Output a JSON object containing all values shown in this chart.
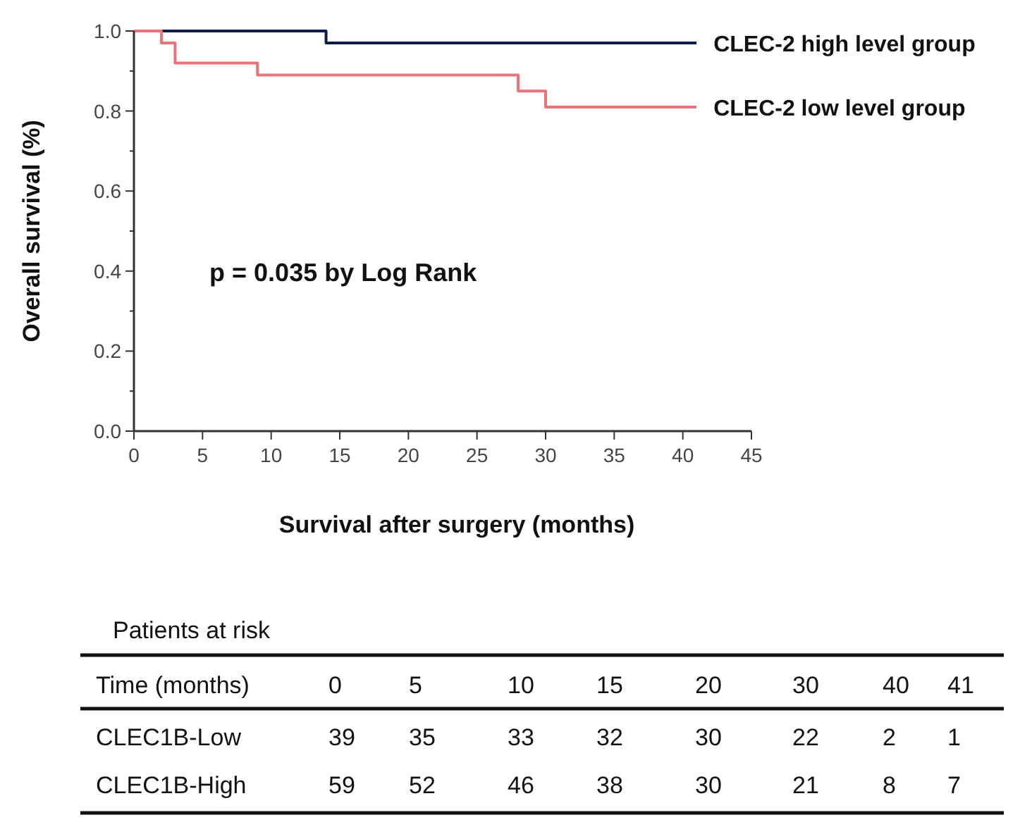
{
  "chart_data": [
    {
      "type": "step",
      "xlabel": "Survival after surgery (months)",
      "ylabel": "Overall survival (%)",
      "xlim": [
        0,
        45
      ],
      "xticks": [
        0,
        5,
        10,
        15,
        20,
        25,
        30,
        35,
        40,
        45
      ],
      "ylim": [
        0,
        1
      ],
      "yticks": [
        {
          "value": 0,
          "label": "0.0"
        },
        {
          "value": 0.1,
          "label": null
        },
        {
          "value": 0.2,
          "label": "0.2"
        },
        {
          "value": 0.3,
          "label": null
        },
        {
          "value": 0.4,
          "label": "0.4"
        },
        {
          "value": 0.5,
          "label": null
        },
        {
          "value": 0.6,
          "label": "0.6"
        },
        {
          "value": 0.7,
          "label": null
        },
        {
          "value": 0.8,
          "label": "0.8"
        },
        {
          "value": 0.9,
          "label": null
        },
        {
          "value": 1,
          "label": "1.0"
        }
      ],
      "series": [
        {
          "name": "CLEC-2 high level group",
          "color": "#0d1b4a",
          "x": [
            0,
            14,
            41
          ],
          "values": [
            1,
            0.97,
            0.97
          ]
        },
        {
          "name": "CLEC-2 low level group",
          "color": "#e8737a",
          "x": [
            0,
            2,
            3,
            9,
            28,
            30,
            41
          ],
          "values": [
            1,
            0.97,
            0.92,
            0.89,
            0.85,
            0.81,
            0.81
          ]
        }
      ],
      "annotations": [
        "p = 0.035 by Log Rank"
      ],
      "grid": false,
      "legend": false
    },
    {
      "type": "heatmap",
      "title": "Patients at risk",
      "xlabel": "Time (months)",
      "categories": [
        "0",
        "5",
        "10",
        "15",
        "20",
        "30",
        "40",
        "41"
      ],
      "y_categories": [
        "CLEC1B-Low",
        "CLEC1B-High"
      ],
      "cells": [
        [
          39,
          35,
          33,
          32,
          30,
          22,
          2,
          1
        ],
        [
          59,
          52,
          46,
          38,
          30,
          21,
          8,
          7
        ]
      ],
      "data_labels": true
    }
  ]
}
